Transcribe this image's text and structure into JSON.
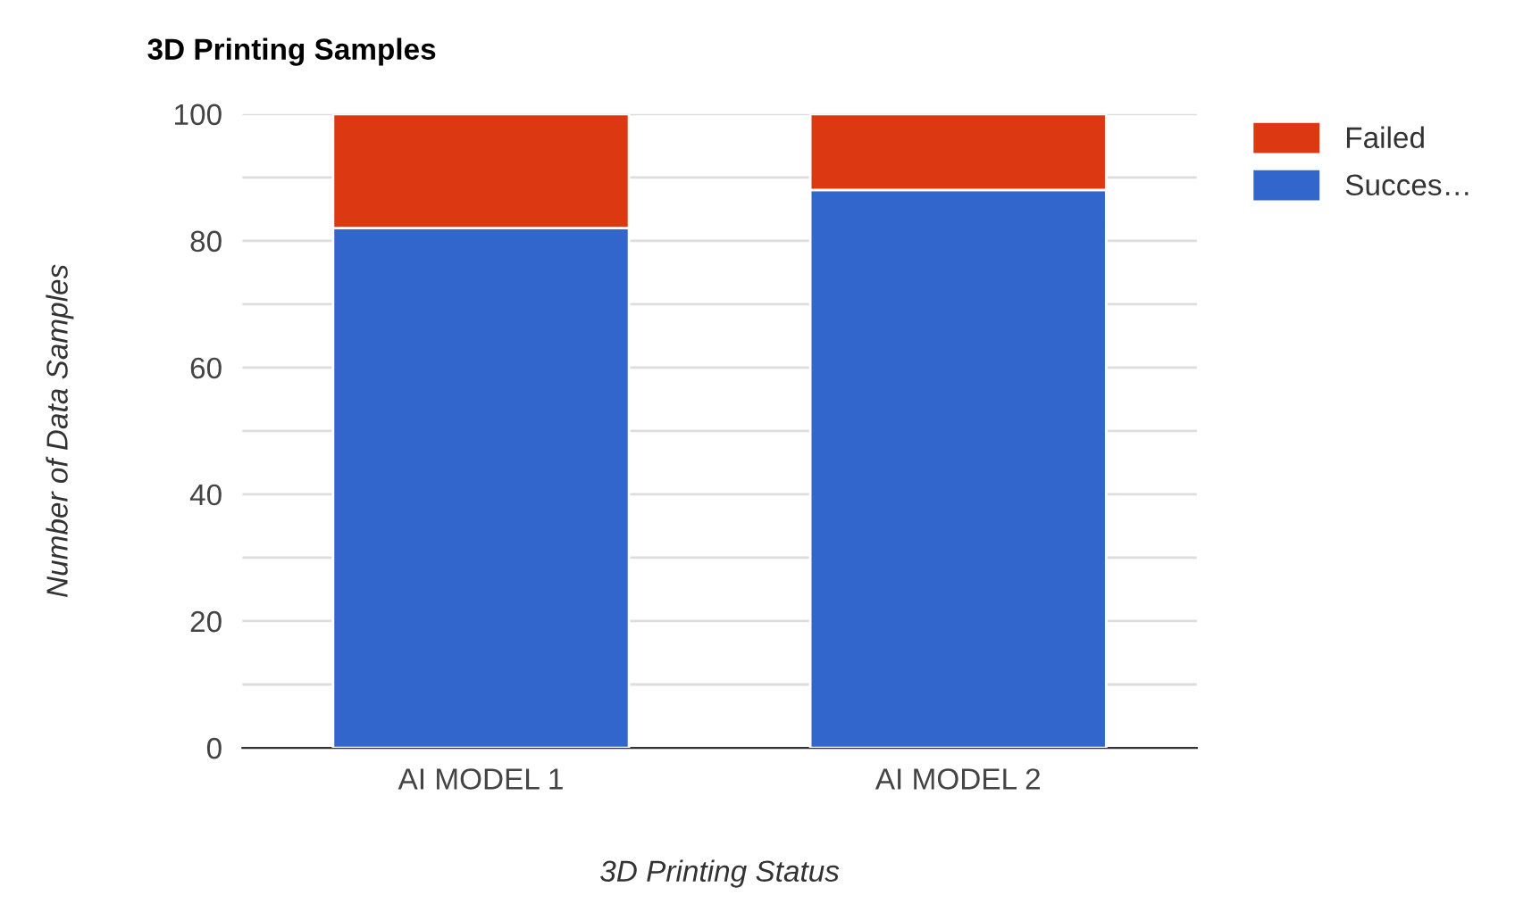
{
  "chart_data": {
    "type": "bar",
    "title": "3D Printing Samples",
    "xlabel": "3D Printing Status",
    "ylabel": "Number of Data Samples",
    "categories": [
      "AI MODEL 1",
      "AI MODEL 2"
    ],
    "stacked": true,
    "series": [
      {
        "name": "Succes…",
        "color": "#3366cc",
        "values": [
          82,
          88
        ]
      },
      {
        "name": "Failed",
        "color": "#dc3912",
        "values": [
          18,
          12
        ]
      }
    ],
    "ylim": [
      0,
      100
    ],
    "yticks": [
      0,
      {
        "value": 10,
        "label": null
      },
      20,
      {
        "value": 30,
        "label": null
      },
      40,
      {
        "value": 50,
        "label": null
      },
      60,
      {
        "value": 70,
        "label": null
      },
      80,
      {
        "value": 90,
        "label": null
      },
      100
    ],
    "grid": "y",
    "legend": "top right"
  }
}
